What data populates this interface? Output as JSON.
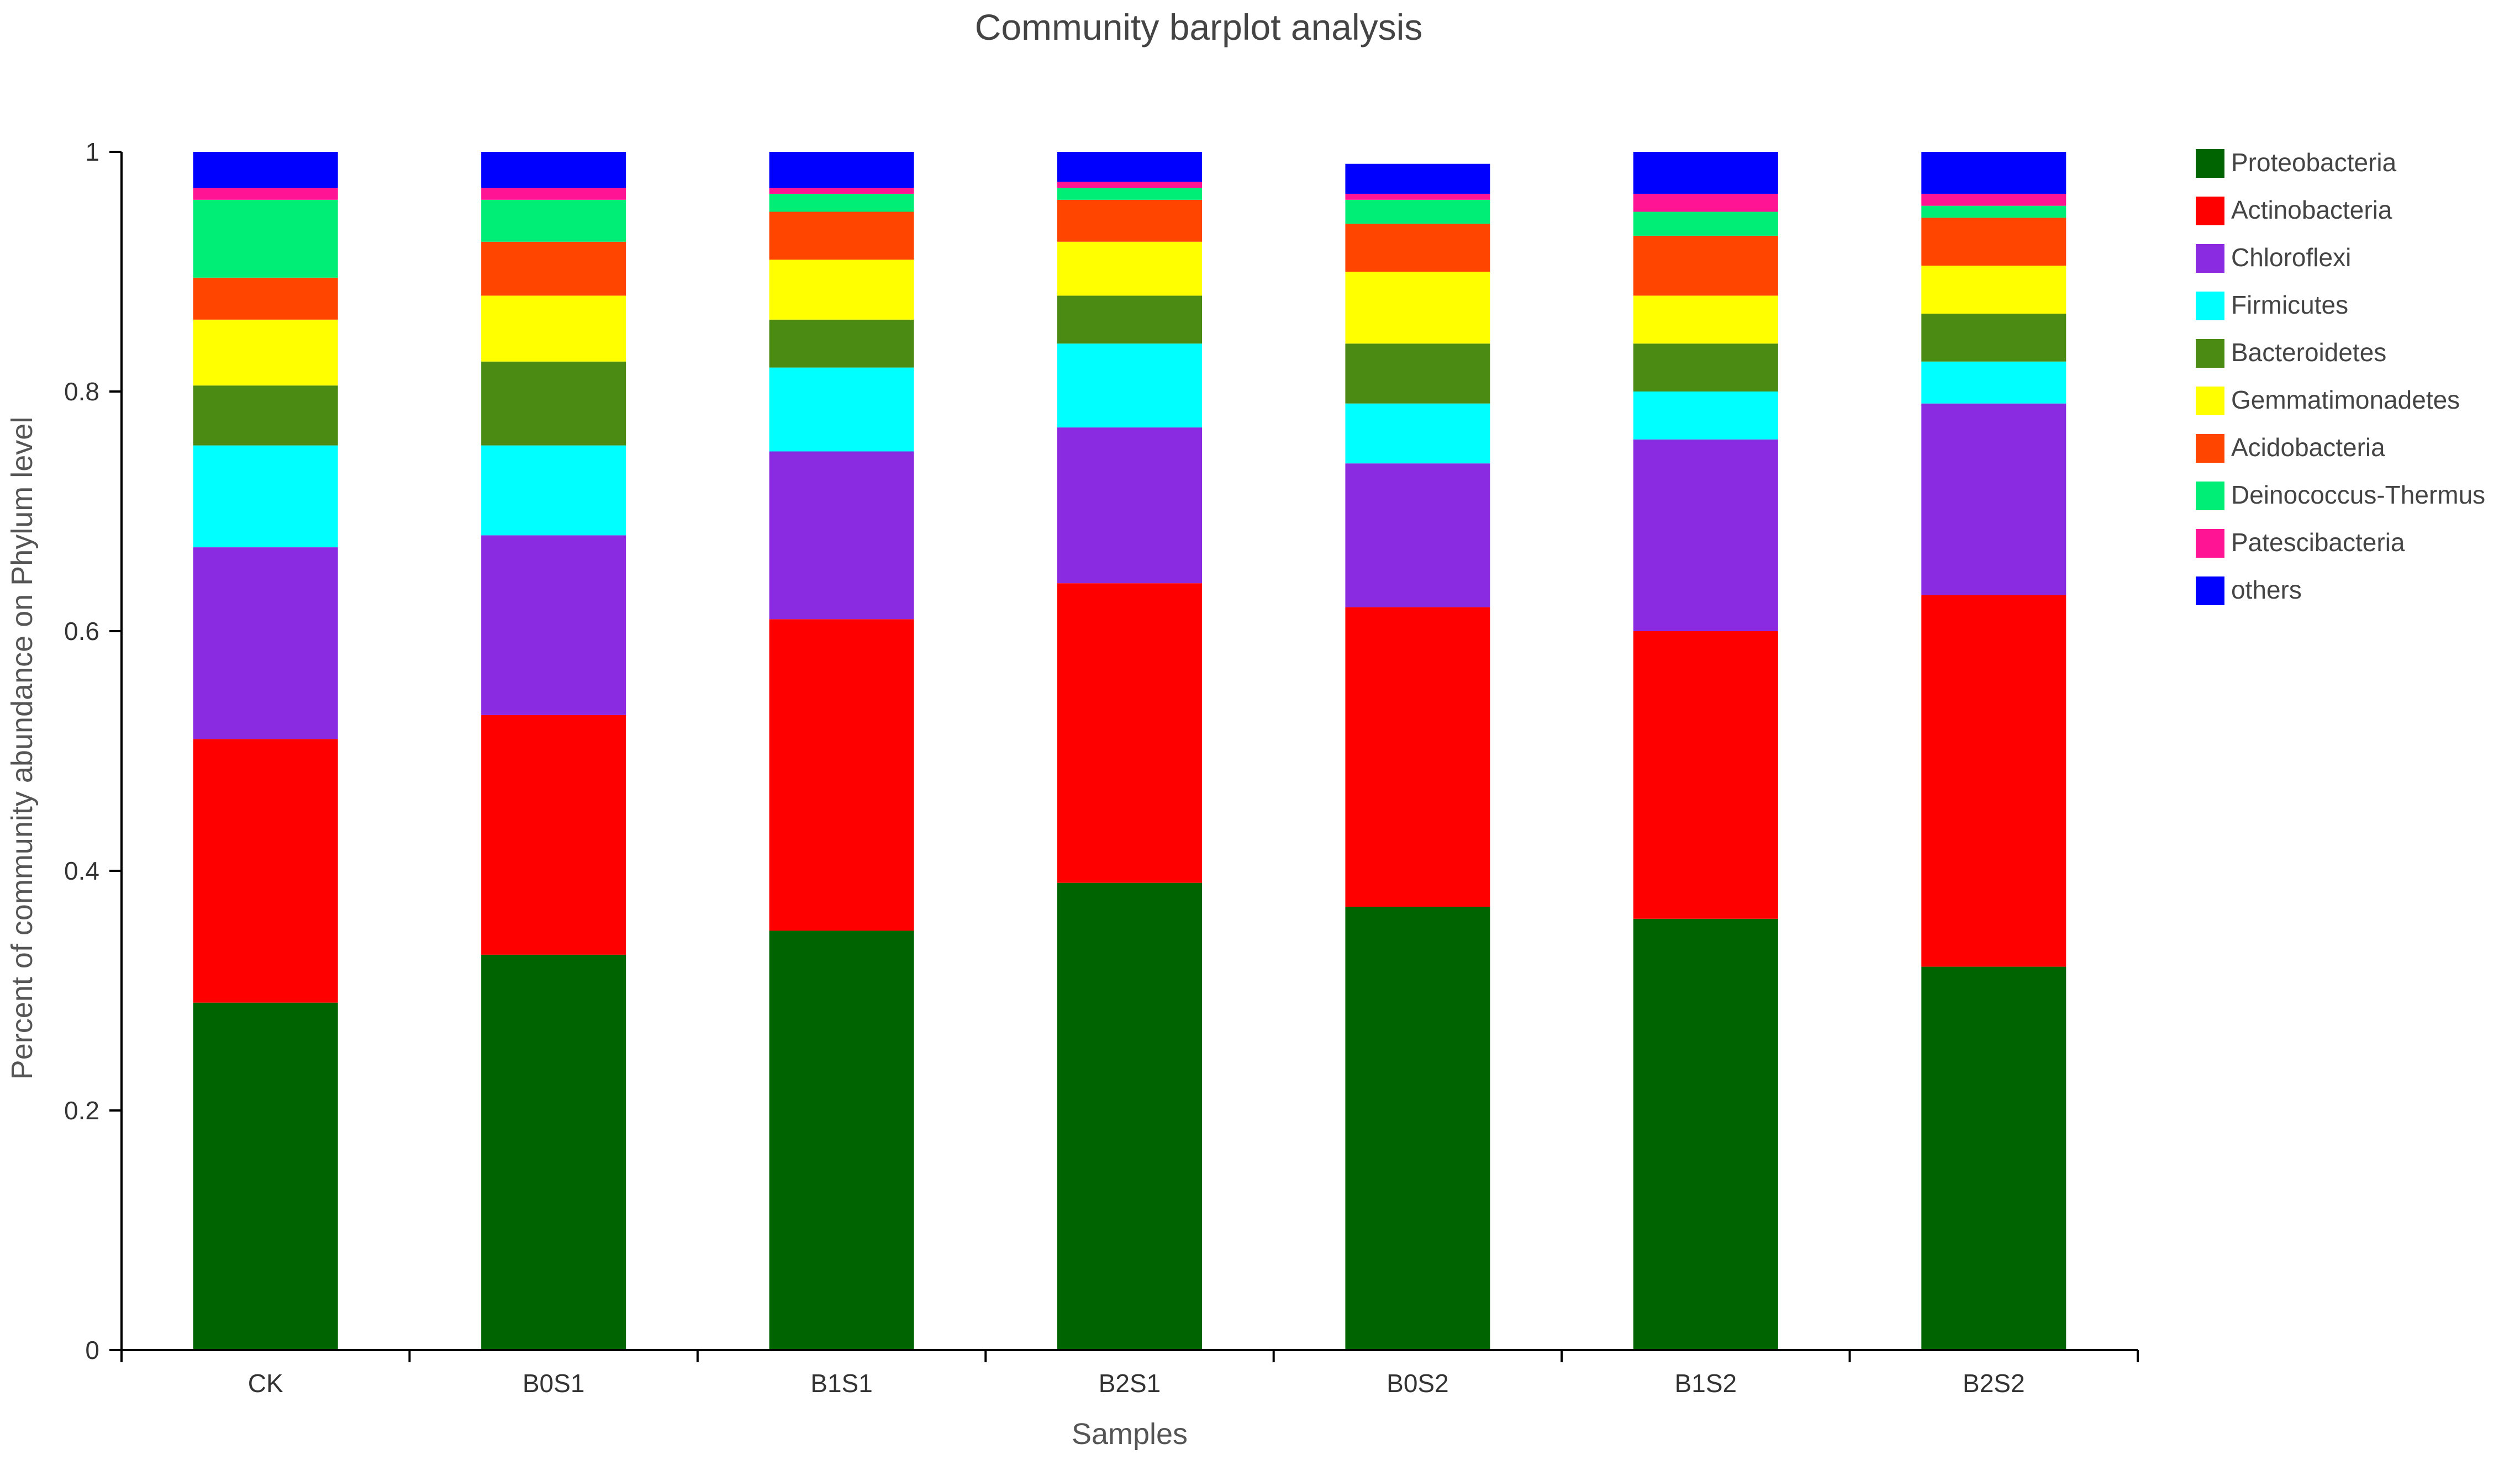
{
  "chart_data": {
    "type": "bar",
    "stacked": true,
    "title": "Community barplot analysis",
    "xlabel": "Samples",
    "ylabel": "Percent of community abundance on Phylum level",
    "ylim": [
      0,
      1
    ],
    "yticks": [
      "0",
      "0.2",
      "0.4",
      "0.6",
      "0.8",
      "1"
    ],
    "ytick_values": [
      0,
      0.2,
      0.4,
      0.6,
      0.8,
      1
    ],
    "legend_position": "right",
    "grid": false,
    "categories": [
      "CK",
      "B0S1",
      "B1S1",
      "B2S1",
      "B0S2",
      "B1S2",
      "B2S2"
    ],
    "series": [
      {
        "name": "Proteobacteria",
        "color": "#006400",
        "values": [
          0.29,
          0.33,
          0.35,
          0.39,
          0.37,
          0.36,
          0.32
        ]
      },
      {
        "name": "Actinobacteria",
        "color": "#ff0000",
        "values": [
          0.22,
          0.2,
          0.26,
          0.25,
          0.25,
          0.24,
          0.31
        ]
      },
      {
        "name": "Chloroflexi",
        "color": "#8a2be2",
        "values": [
          0.16,
          0.15,
          0.14,
          0.13,
          0.12,
          0.16,
          0.16
        ]
      },
      {
        "name": "Firmicutes",
        "color": "#00ffff",
        "values": [
          0.085,
          0.075,
          0.07,
          0.07,
          0.05,
          0.04,
          0.035
        ]
      },
      {
        "name": "Bacteroidetes",
        "color": "#4b8b14",
        "values": [
          0.05,
          0.07,
          0.04,
          0.04,
          0.05,
          0.04,
          0.04
        ]
      },
      {
        "name": "Gemmatimonadetes",
        "color": "#ffff00",
        "values": [
          0.055,
          0.055,
          0.05,
          0.045,
          0.06,
          0.04,
          0.04
        ]
      },
      {
        "name": "Acidobacteria",
        "color": "#ff4500",
        "values": [
          0.035,
          0.045,
          0.04,
          0.035,
          0.04,
          0.05,
          0.04
        ]
      },
      {
        "name": "Deinococcus-Thermus",
        "color": "#00ee76",
        "values": [
          0.065,
          0.035,
          0.015,
          0.01,
          0.02,
          0.02,
          0.01
        ]
      },
      {
        "name": "Patescibacteria",
        "color": "#ff1493",
        "values": [
          0.01,
          0.01,
          0.005,
          0.005,
          0.005,
          0.015,
          0.01
        ]
      },
      {
        "name": "others",
        "color": "#0000ff",
        "values": [
          0.03,
          0.03,
          0.03,
          0.03,
          0.025,
          0.035,
          0.035
        ]
      }
    ]
  }
}
